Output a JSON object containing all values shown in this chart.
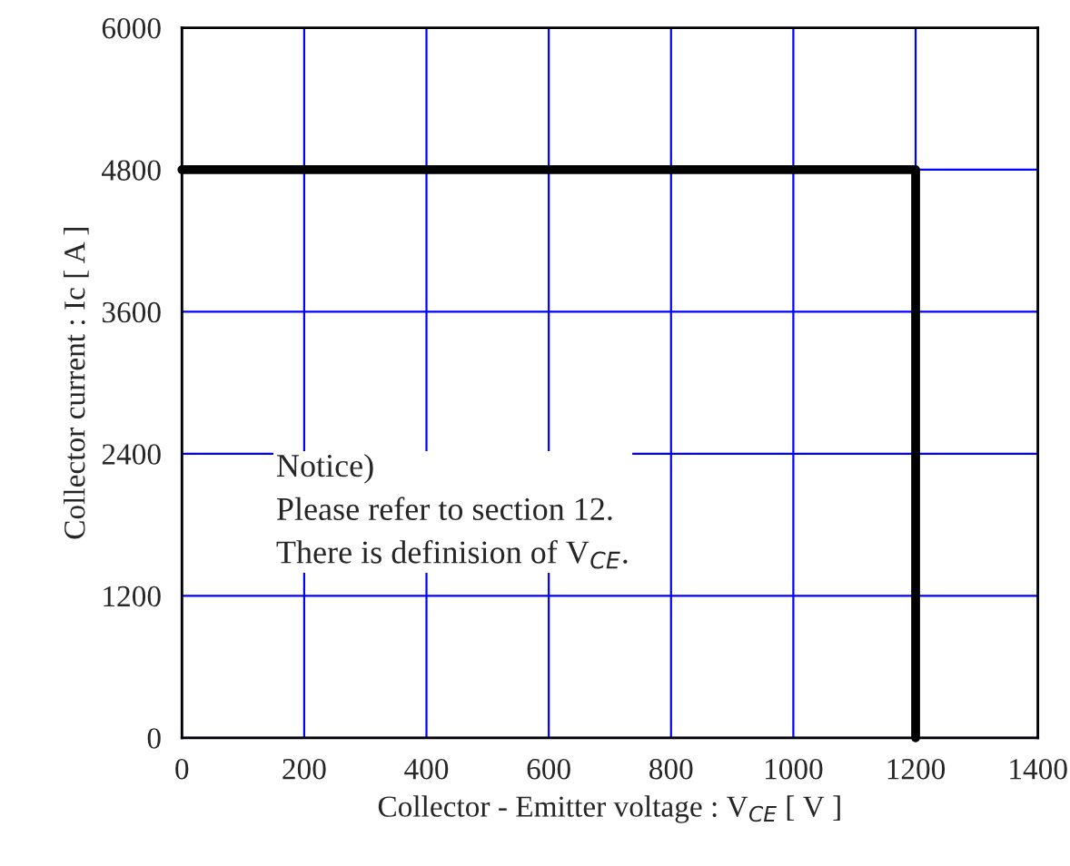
{
  "chart_data": {
    "type": "step",
    "xlabel": "Collector - Emitter voltage : V$_{CE}$ [ V ]",
    "ylabel": "Collector current : Ic [ A ]",
    "x": [
      0,
      1200
    ],
    "series": [
      {
        "color": "#000000",
        "values": [
          4800,
          0
        ]
      }
    ],
    "xlim": [
      0,
      1400
    ],
    "xticks": [
      0,
      200,
      400,
      600,
      800,
      1000,
      1200,
      1400
    ],
    "ylim": [
      0,
      6000
    ],
    "yticks": [
      0,
      1200,
      2400,
      3600,
      4800,
      6000
    ],
    "grid": true,
    "marker": "none",
    "line_style": "solid",
    "annotations": [
      "Notice)\nPlease refer to section 12.\nThere is definision of V$_{CE}$."
    ]
  }
}
